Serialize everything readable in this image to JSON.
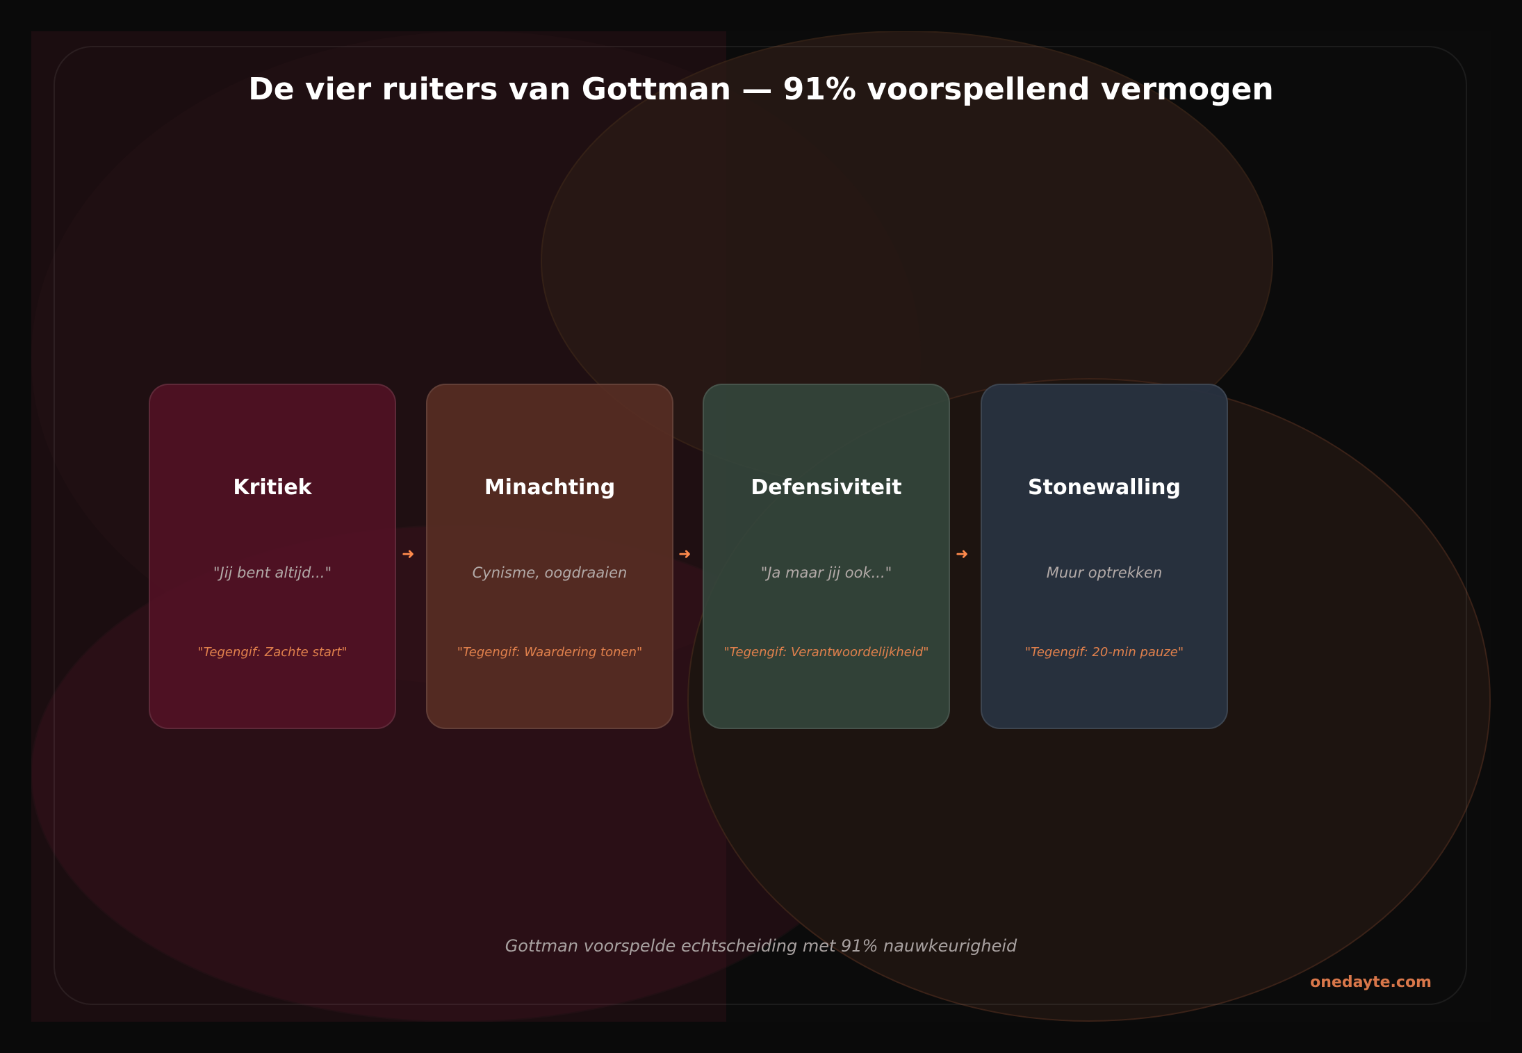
{
  "title": "De vier ruiters van Gottman — 91% voorspellend vermogen",
  "cards": [
    {
      "name": "Kritiek",
      "example": "\"Jij bent altijd...\"",
      "antidote": "\"Tegengif: Zachte start\"",
      "color": "#501424"
    },
    {
      "name": "Minachting",
      "example": "Cynisme, oogdraaien",
      "antidote": "\"Tegengif: Waardering tonen\"",
      "color": "#542d24"
    },
    {
      "name": "Defensiviteit",
      "example": "\"Ja maar jij ook...\"",
      "antidote": "\"Tegengif: Verantwoordelijkheid\"",
      "color": "#33443a"
    },
    {
      "name": "Stonewalling",
      "example": "Muur optrekken",
      "antidote": "\"Tegengif: 20-min pauze\"",
      "color": "#283140"
    }
  ],
  "arrow_icon": "arrow-right-icon",
  "footer": "Gottman voorspelde echtscheiding met 91% nauwkeurigheid",
  "brand": "onedayte.com"
}
